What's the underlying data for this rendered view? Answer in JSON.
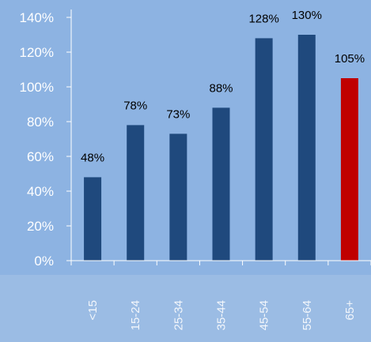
{
  "colors": {
    "background": "#8DB3E2",
    "bar": "#1F497D",
    "highlight_bar": "#C00000",
    "axis": "#FFFFFF",
    "tick_text": "#FFFFFF",
    "data_label_text": "#000000"
  },
  "chart_data": {
    "type": "bar",
    "categories": [
      "<15",
      "15-24",
      "25-34",
      "35-44",
      "45-54",
      "55-64",
      "65+"
    ],
    "values": [
      48,
      78,
      73,
      88,
      128,
      130,
      105
    ],
    "data_labels": [
      "48%",
      "78%",
      "73%",
      "88%",
      "128%",
      "130%",
      "105%"
    ],
    "highlight_category": "65+",
    "yticks": [
      0,
      20,
      40,
      60,
      80,
      100,
      120,
      140
    ],
    "ytick_labels": [
      "0%",
      "20%",
      "40%",
      "60%",
      "80%",
      "100%",
      "120%",
      "140%"
    ],
    "ylim": [
      0,
      140
    ],
    "category_label_orientation": "vertical",
    "grid": false,
    "legend": "none"
  }
}
